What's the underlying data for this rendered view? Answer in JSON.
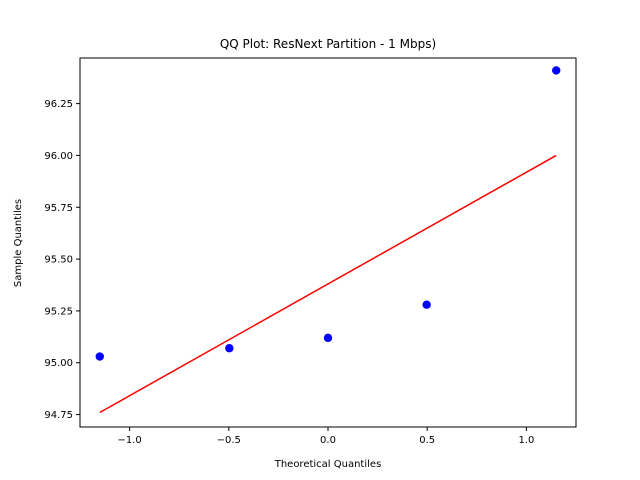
{
  "chart_data": {
    "type": "scatter",
    "title": "QQ Plot: ResNext Partition - 1 Mbps)",
    "xlabel": "Theoretical Quantiles",
    "ylabel": "Sample Quantiles",
    "xlim": [
      -1.25,
      1.25
    ],
    "ylim": [
      94.69,
      96.47
    ],
    "grid": false,
    "x_ticks": [
      -1.0,
      -0.5,
      0.0,
      0.5,
      1.0
    ],
    "x_tick_labels": [
      "−1.0",
      "−0.5",
      "0.0",
      "0.5",
      "1.0"
    ],
    "y_ticks": [
      94.75,
      95.0,
      95.25,
      95.5,
      95.75,
      96.0,
      96.25
    ],
    "y_tick_labels": [
      "94.75",
      "95.00",
      "95.25",
      "95.50",
      "95.75",
      "96.00",
      "96.25"
    ],
    "series": [
      {
        "kind": "points",
        "color": "#0000ff",
        "x": [
          -1.1503,
          -0.4973,
          0.0,
          0.4973,
          1.1503
        ],
        "y": [
          95.03,
          95.07,
          95.12,
          95.28,
          96.41
        ]
      },
      {
        "kind": "line",
        "color": "#ff0000",
        "x": [
          -1.1503,
          1.1503
        ],
        "y": [
          94.76,
          96.0
        ]
      }
    ]
  }
}
